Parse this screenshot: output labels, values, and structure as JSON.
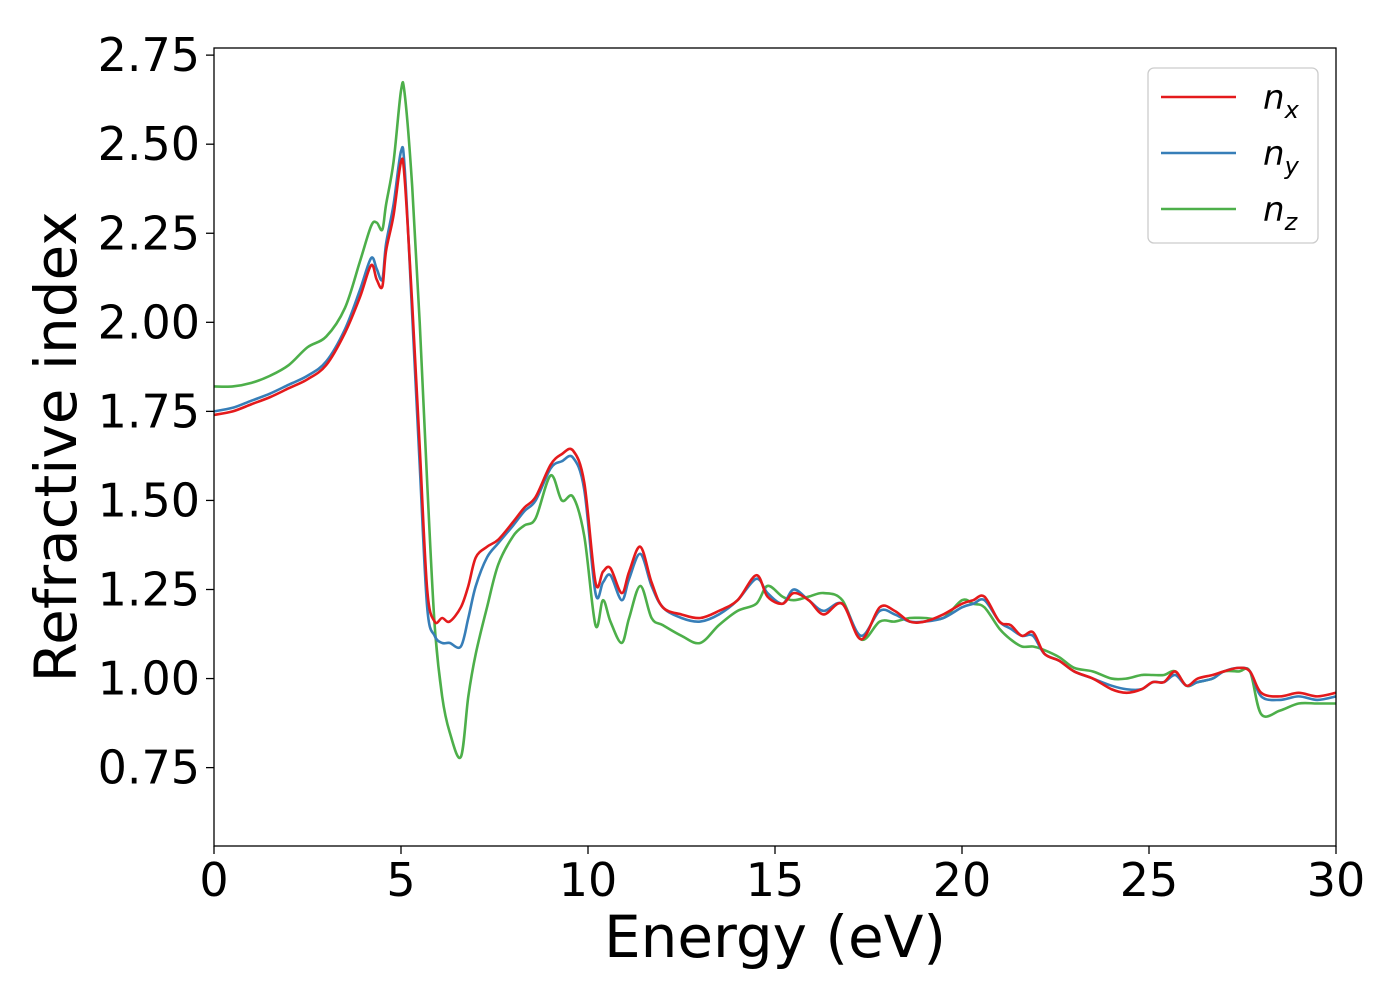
{
  "chart_data": {
    "type": "line",
    "title": "",
    "xlabel": "Energy (eV)",
    "ylabel": "Refractive index",
    "xlim": [
      0,
      30
    ],
    "ylim": [
      0.53,
      2.77
    ],
    "x_ticks": [
      0,
      5,
      10,
      15,
      20,
      25,
      30
    ],
    "x_tick_labels": [
      "0",
      "5",
      "10",
      "15",
      "20",
      "25",
      "30"
    ],
    "y_ticks": [
      0.75,
      1.0,
      1.25,
      1.5,
      1.75,
      2.0,
      2.25,
      2.5,
      2.75
    ],
    "y_tick_labels": [
      "0.75",
      "1.00",
      "1.25",
      "1.50",
      "1.75",
      "2.00",
      "2.25",
      "2.50",
      "2.75"
    ],
    "grid": false,
    "legend_position": "top-right",
    "series": [
      {
        "name": "n_x",
        "legend_base": "n",
        "legend_sub": "x",
        "color": "#e41a1c",
        "x": [
          0,
          0.5,
          1,
          1.5,
          2,
          2.5,
          3,
          3.5,
          3.9,
          4.2,
          4.35,
          4.5,
          4.6,
          4.8,
          5.0,
          5.1,
          5.3,
          5.5,
          5.7,
          5.9,
          6.1,
          6.3,
          6.6,
          6.8,
          7.0,
          7.3,
          7.6,
          8.0,
          8.3,
          8.6,
          9.0,
          9.3,
          9.6,
          9.9,
          10.2,
          10.4,
          10.6,
          10.9,
          11.1,
          11.4,
          11.7,
          12.0,
          12.5,
          13.0,
          13.5,
          14.0,
          14.5,
          14.8,
          15.2,
          15.5,
          15.9,
          16.3,
          16.8,
          17.3,
          17.8,
          18.2,
          18.6,
          19.0,
          19.5,
          20.0,
          20.3,
          20.6,
          21.0,
          21.3,
          21.6,
          21.9,
          22.2,
          22.6,
          23.0,
          23.5,
          24.0,
          24.4,
          24.8,
          25.1,
          25.4,
          25.7,
          26.0,
          26.3,
          26.7,
          27.0,
          27.4,
          27.7,
          28.0,
          28.5,
          29.0,
          29.5,
          30.0
        ],
        "y": [
          1.74,
          1.75,
          1.77,
          1.79,
          1.815,
          1.84,
          1.88,
          1.97,
          2.07,
          2.16,
          2.12,
          2.1,
          2.2,
          2.3,
          2.45,
          2.4,
          2.05,
          1.65,
          1.25,
          1.16,
          1.17,
          1.16,
          1.2,
          1.26,
          1.34,
          1.37,
          1.39,
          1.44,
          1.48,
          1.51,
          1.6,
          1.63,
          1.64,
          1.55,
          1.27,
          1.3,
          1.31,
          1.24,
          1.3,
          1.37,
          1.27,
          1.2,
          1.18,
          1.17,
          1.19,
          1.22,
          1.29,
          1.23,
          1.21,
          1.24,
          1.22,
          1.18,
          1.21,
          1.11,
          1.2,
          1.19,
          1.16,
          1.16,
          1.18,
          1.21,
          1.22,
          1.23,
          1.16,
          1.15,
          1.12,
          1.13,
          1.07,
          1.05,
          1.02,
          1.0,
          0.97,
          0.96,
          0.97,
          0.99,
          0.99,
          1.02,
          0.98,
          1.0,
          1.01,
          1.02,
          1.03,
          1.02,
          0.96,
          0.95,
          0.96,
          0.95,
          0.96
        ]
      },
      {
        "name": "n_y",
        "legend_base": "n",
        "legend_sub": "y",
        "color": "#377eb8",
        "x": [
          0,
          0.5,
          1,
          1.5,
          2,
          2.5,
          3,
          3.5,
          3.9,
          4.2,
          4.35,
          4.5,
          4.6,
          4.8,
          5.0,
          5.1,
          5.3,
          5.5,
          5.7,
          5.9,
          6.1,
          6.3,
          6.6,
          6.8,
          7.0,
          7.3,
          7.6,
          8.0,
          8.3,
          8.6,
          9.0,
          9.3,
          9.6,
          9.9,
          10.2,
          10.4,
          10.6,
          10.9,
          11.1,
          11.4,
          11.7,
          12.0,
          12.5,
          13.0,
          13.5,
          14.0,
          14.5,
          14.8,
          15.2,
          15.5,
          15.9,
          16.3,
          16.8,
          17.3,
          17.8,
          18.2,
          18.6,
          19.0,
          19.5,
          20.0,
          20.3,
          20.6,
          21.0,
          21.3,
          21.6,
          21.9,
          22.2,
          22.6,
          23.0,
          23.5,
          24.0,
          24.4,
          24.8,
          25.1,
          25.4,
          25.7,
          26.0,
          26.3,
          26.7,
          27.0,
          27.4,
          27.7,
          28.0,
          28.5,
          29.0,
          29.5,
          30.0
        ],
        "y": [
          1.75,
          1.76,
          1.78,
          1.8,
          1.825,
          1.85,
          1.89,
          1.98,
          2.09,
          2.18,
          2.15,
          2.12,
          2.22,
          2.33,
          2.48,
          2.43,
          2.02,
          1.6,
          1.2,
          1.12,
          1.1,
          1.1,
          1.09,
          1.17,
          1.26,
          1.34,
          1.38,
          1.43,
          1.47,
          1.5,
          1.59,
          1.61,
          1.62,
          1.53,
          1.24,
          1.27,
          1.29,
          1.22,
          1.28,
          1.35,
          1.26,
          1.2,
          1.17,
          1.16,
          1.18,
          1.22,
          1.28,
          1.24,
          1.21,
          1.25,
          1.22,
          1.19,
          1.21,
          1.12,
          1.19,
          1.18,
          1.16,
          1.16,
          1.17,
          1.2,
          1.21,
          1.22,
          1.16,
          1.14,
          1.12,
          1.12,
          1.07,
          1.05,
          1.02,
          1.0,
          0.98,
          0.97,
          0.97,
          0.99,
          0.99,
          1.01,
          0.98,
          0.99,
          1.0,
          1.02,
          1.03,
          1.02,
          0.95,
          0.94,
          0.95,
          0.94,
          0.95
        ]
      },
      {
        "name": "n_z",
        "legend_base": "n",
        "legend_sub": "z",
        "color": "#4daf4a",
        "x": [
          0,
          0.5,
          1,
          1.5,
          2,
          2.5,
          3,
          3.5,
          3.9,
          4.2,
          4.35,
          4.5,
          4.6,
          4.8,
          5.0,
          5.1,
          5.3,
          5.5,
          5.7,
          5.9,
          6.1,
          6.3,
          6.6,
          6.8,
          7.0,
          7.3,
          7.6,
          8.0,
          8.3,
          8.6,
          9.0,
          9.3,
          9.6,
          9.9,
          10.2,
          10.4,
          10.6,
          10.9,
          11.1,
          11.4,
          11.7,
          12.0,
          12.5,
          13.0,
          13.5,
          14.0,
          14.5,
          14.8,
          15.2,
          15.5,
          15.9,
          16.3,
          16.8,
          17.3,
          17.8,
          18.2,
          18.6,
          19.0,
          19.5,
          20.0,
          20.3,
          20.6,
          21.0,
          21.3,
          21.6,
          21.9,
          22.2,
          22.6,
          23.0,
          23.5,
          24.0,
          24.4,
          24.8,
          25.1,
          25.4,
          25.7,
          26.0,
          26.3,
          26.7,
          27.0,
          27.4,
          27.7,
          28.0,
          28.5,
          29.0,
          29.5,
          30.0
        ],
        "y": [
          1.82,
          1.82,
          1.83,
          1.85,
          1.88,
          1.93,
          1.96,
          2.04,
          2.17,
          2.27,
          2.28,
          2.26,
          2.33,
          2.45,
          2.65,
          2.64,
          2.38,
          2.0,
          1.55,
          1.15,
          0.95,
          0.85,
          0.78,
          0.95,
          1.07,
          1.2,
          1.32,
          1.4,
          1.43,
          1.45,
          1.57,
          1.5,
          1.51,
          1.4,
          1.15,
          1.22,
          1.16,
          1.1,
          1.17,
          1.26,
          1.17,
          1.15,
          1.12,
          1.1,
          1.15,
          1.19,
          1.21,
          1.26,
          1.23,
          1.22,
          1.23,
          1.24,
          1.22,
          1.11,
          1.16,
          1.16,
          1.17,
          1.17,
          1.17,
          1.22,
          1.21,
          1.2,
          1.14,
          1.11,
          1.09,
          1.09,
          1.08,
          1.06,
          1.03,
          1.02,
          1.0,
          1.0,
          1.01,
          1.01,
          1.01,
          1.02,
          0.98,
          0.99,
          1.0,
          1.02,
          1.02,
          1.02,
          0.9,
          0.91,
          0.93,
          0.93,
          0.93
        ]
      }
    ]
  }
}
